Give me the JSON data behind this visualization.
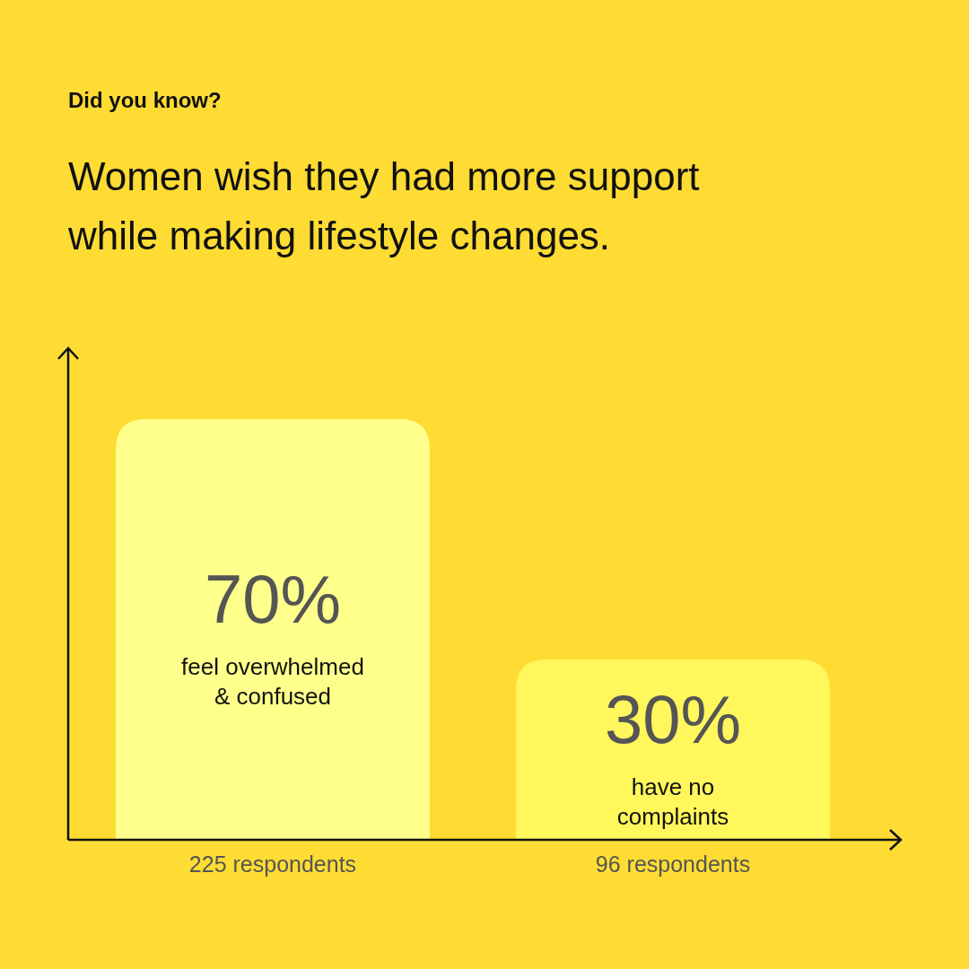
{
  "chart_data": {
    "type": "bar",
    "subtitle": "Did you know?",
    "title": "Women wish they had more support while making lifestyle changes.",
    "categories": [
      "225 respondents",
      "96 respondents"
    ],
    "values": [
      70,
      30
    ],
    "colors": [
      "#ffff8c",
      "#fff75c"
    ],
    "value_labels": [
      "70%",
      "30%"
    ],
    "annotations": [
      "feel overwhelmed & confused",
      "have no complaints"
    ]
  }
}
